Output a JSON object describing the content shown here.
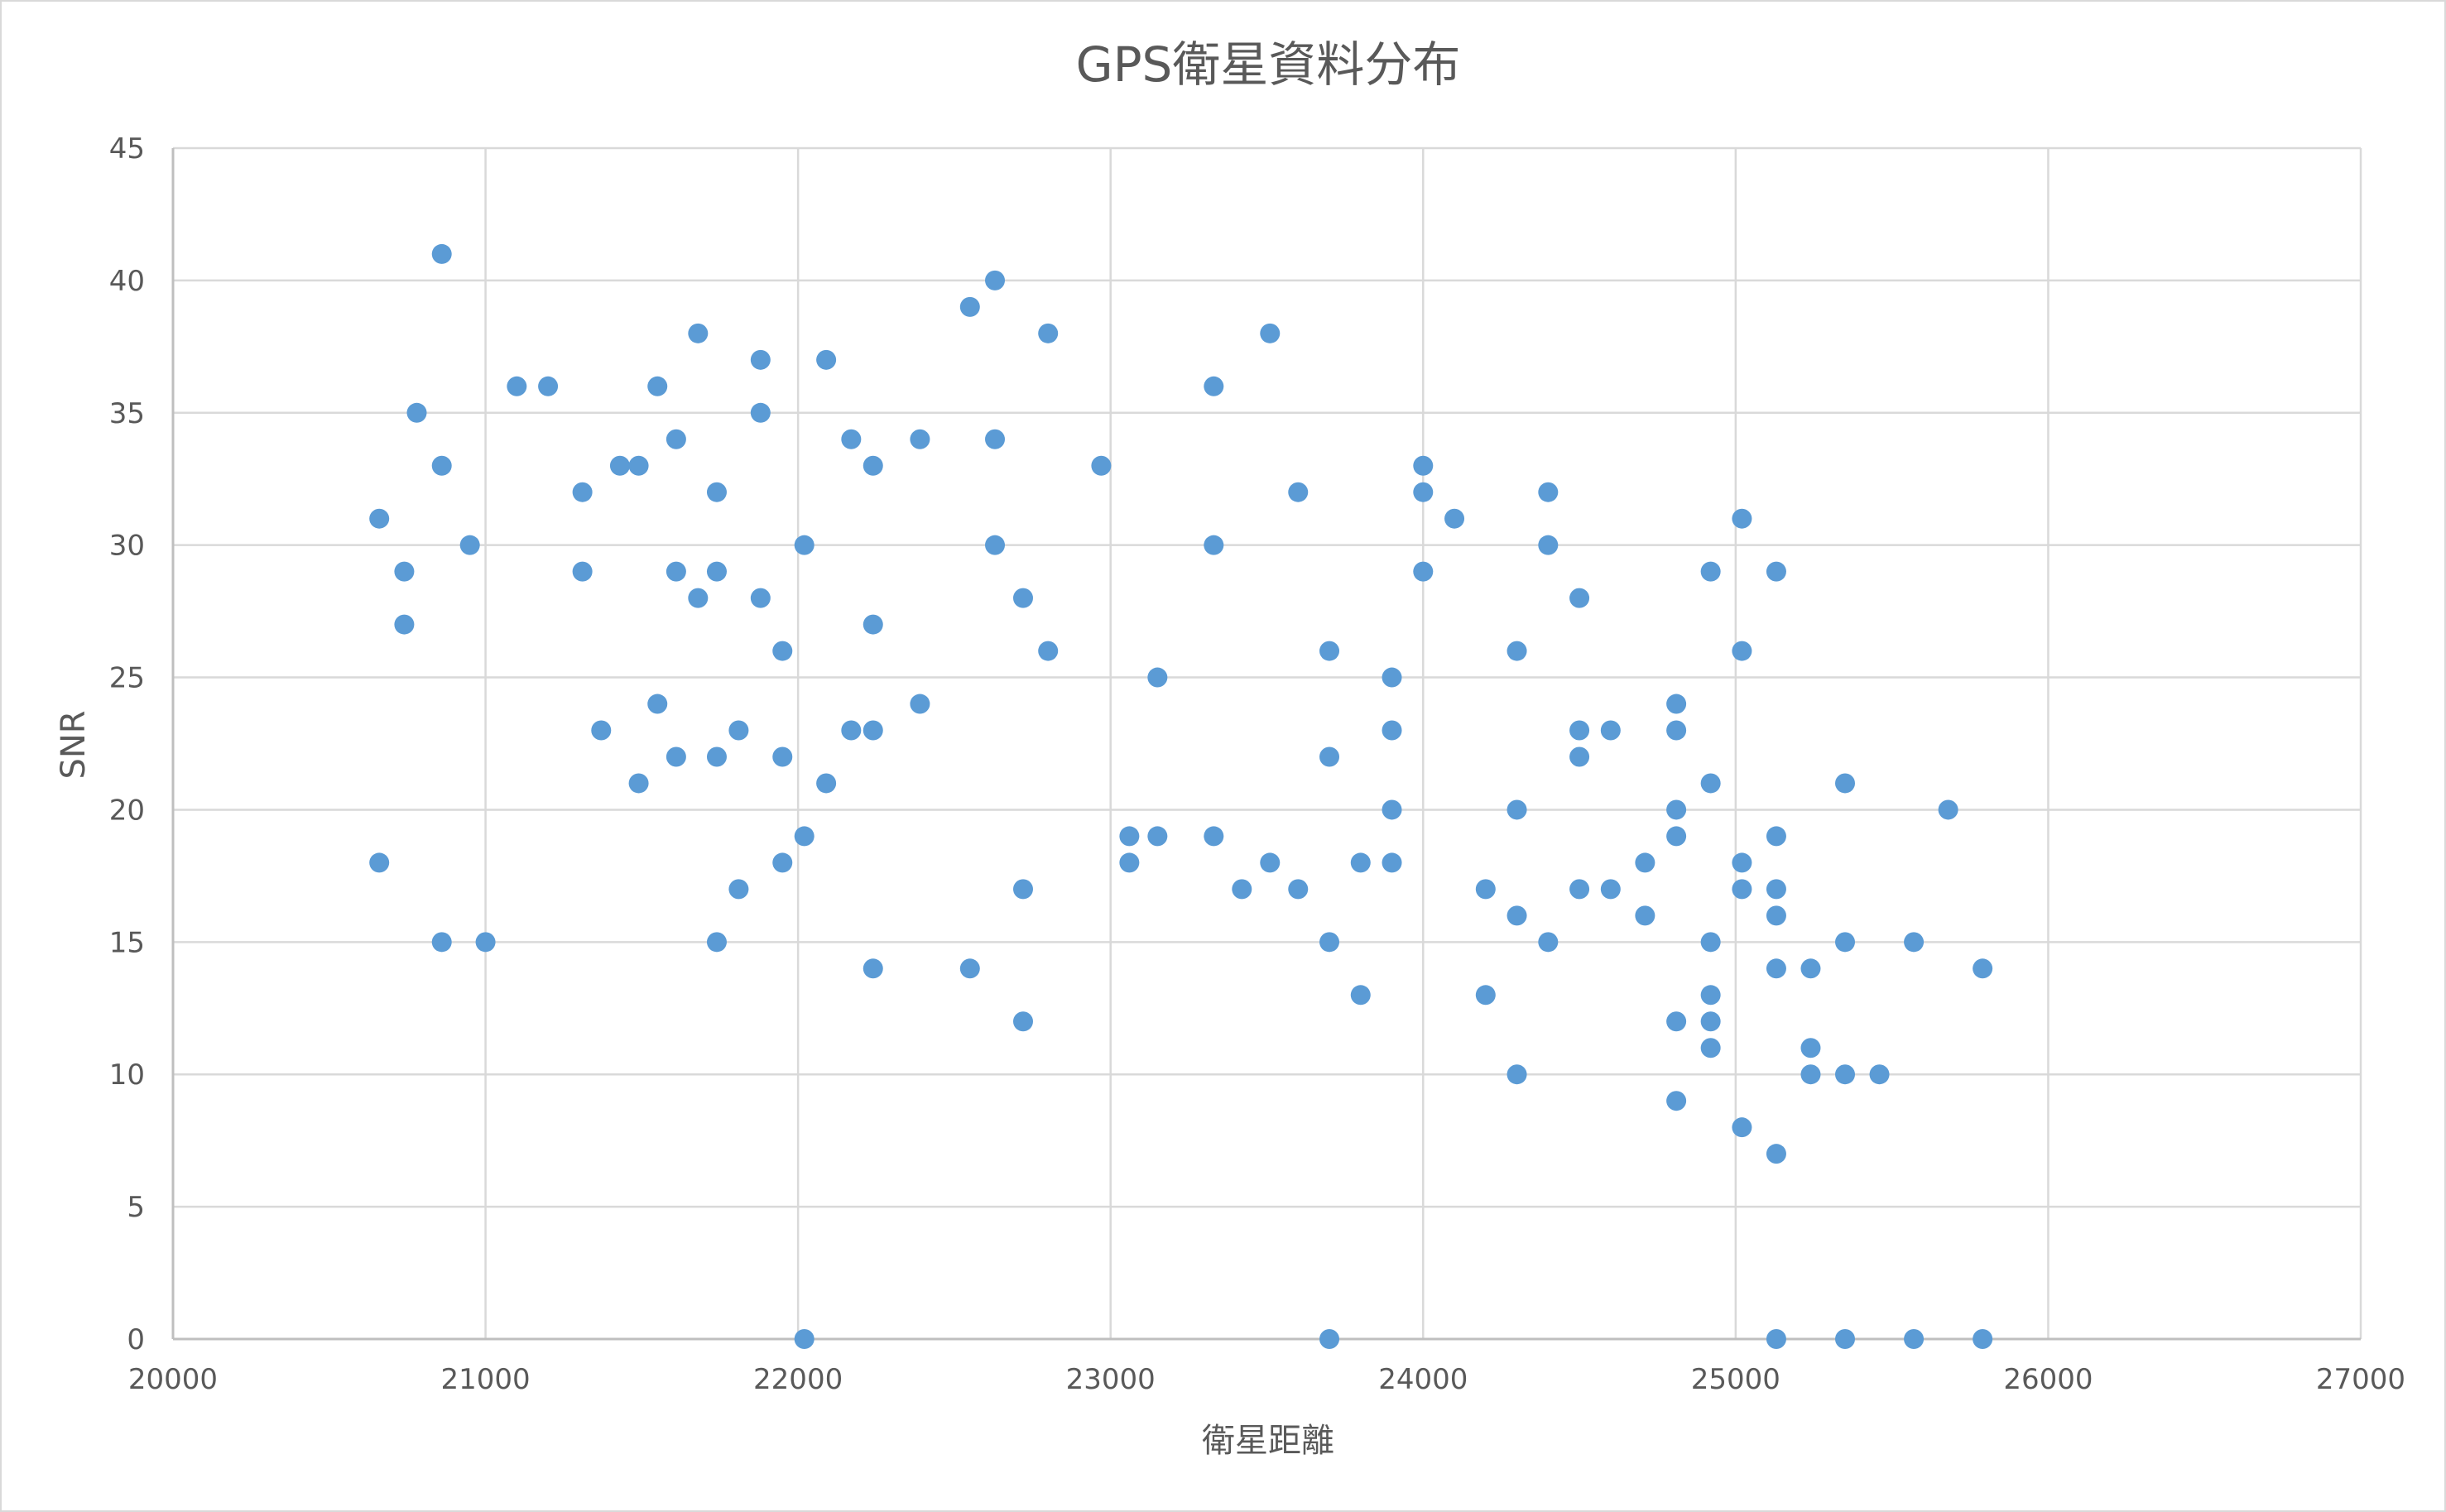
{
  "chart_data": {
    "type": "scatter",
    "title": "GPS衛星資料分布",
    "xlabel": "衛星距離",
    "ylabel": "SNR",
    "xlim": [
      20000,
      27000
    ],
    "ylim": [
      0,
      45
    ],
    "xticks": [
      20000,
      21000,
      22000,
      23000,
      24000,
      25000,
      26000,
      27000
    ],
    "yticks": [
      0,
      5,
      10,
      15,
      20,
      25,
      30,
      35,
      40,
      45
    ],
    "grid": true,
    "marker_color": "#5b9bd5",
    "points": [
      {
        "x": 20660,
        "y": 31
      },
      {
        "x": 20660,
        "y": 18
      },
      {
        "x": 20740,
        "y": 29
      },
      {
        "x": 20740,
        "y": 27
      },
      {
        "x": 20780,
        "y": 35
      },
      {
        "x": 20860,
        "y": 41
      },
      {
        "x": 20860,
        "y": 33
      },
      {
        "x": 20860,
        "y": 15
      },
      {
        "x": 20950,
        "y": 30
      },
      {
        "x": 21000,
        "y": 15
      },
      {
        "x": 21100,
        "y": 36
      },
      {
        "x": 21200,
        "y": 36
      },
      {
        "x": 21310,
        "y": 32
      },
      {
        "x": 21310,
        "y": 29
      },
      {
        "x": 21370,
        "y": 23
      },
      {
        "x": 21430,
        "y": 33
      },
      {
        "x": 21490,
        "y": 33
      },
      {
        "x": 21490,
        "y": 21
      },
      {
        "x": 21550,
        "y": 36
      },
      {
        "x": 21550,
        "y": 24
      },
      {
        "x": 21610,
        "y": 34
      },
      {
        "x": 21610,
        "y": 29
      },
      {
        "x": 21610,
        "y": 22
      },
      {
        "x": 21680,
        "y": 38
      },
      {
        "x": 21680,
        "y": 28
      },
      {
        "x": 21740,
        "y": 32
      },
      {
        "x": 21740,
        "y": 29
      },
      {
        "x": 21740,
        "y": 22
      },
      {
        "x": 21740,
        "y": 15
      },
      {
        "x": 21810,
        "y": 23
      },
      {
        "x": 21810,
        "y": 17
      },
      {
        "x": 21880,
        "y": 37
      },
      {
        "x": 21880,
        "y": 35
      },
      {
        "x": 21880,
        "y": 28
      },
      {
        "x": 21950,
        "y": 26
      },
      {
        "x": 21950,
        "y": 22
      },
      {
        "x": 21950,
        "y": 18
      },
      {
        "x": 22020,
        "y": 30
      },
      {
        "x": 22020,
        "y": 19
      },
      {
        "x": 22020,
        "y": 0
      },
      {
        "x": 22090,
        "y": 37
      },
      {
        "x": 22090,
        "y": 21
      },
      {
        "x": 22170,
        "y": 34
      },
      {
        "x": 22170,
        "y": 23
      },
      {
        "x": 22240,
        "y": 33
      },
      {
        "x": 22240,
        "y": 27
      },
      {
        "x": 22240,
        "y": 23
      },
      {
        "x": 22240,
        "y": 14
      },
      {
        "x": 22390,
        "y": 34
      },
      {
        "x": 22390,
        "y": 24
      },
      {
        "x": 22550,
        "y": 39
      },
      {
        "x": 22550,
        "y": 14
      },
      {
        "x": 22630,
        "y": 40
      },
      {
        "x": 22630,
        "y": 34
      },
      {
        "x": 22630,
        "y": 30
      },
      {
        "x": 22720,
        "y": 28
      },
      {
        "x": 22720,
        "y": 17
      },
      {
        "x": 22720,
        "y": 12
      },
      {
        "x": 22800,
        "y": 38
      },
      {
        "x": 22800,
        "y": 26
      },
      {
        "x": 22970,
        "y": 33
      },
      {
        "x": 23060,
        "y": 19
      },
      {
        "x": 23060,
        "y": 18
      },
      {
        "x": 23150,
        "y": 25
      },
      {
        "x": 23150,
        "y": 19
      },
      {
        "x": 23330,
        "y": 36
      },
      {
        "x": 23330,
        "y": 30
      },
      {
        "x": 23330,
        "y": 19
      },
      {
        "x": 23420,
        "y": 17
      },
      {
        "x": 23510,
        "y": 38
      },
      {
        "x": 23510,
        "y": 18
      },
      {
        "x": 23600,
        "y": 32
      },
      {
        "x": 23600,
        "y": 17
      },
      {
        "x": 23700,
        "y": 26
      },
      {
        "x": 23700,
        "y": 22
      },
      {
        "x": 23700,
        "y": 15
      },
      {
        "x": 23700,
        "y": 0
      },
      {
        "x": 23800,
        "y": 18
      },
      {
        "x": 23800,
        "y": 13
      },
      {
        "x": 23900,
        "y": 25
      },
      {
        "x": 23900,
        "y": 23
      },
      {
        "x": 23900,
        "y": 20
      },
      {
        "x": 23900,
        "y": 18
      },
      {
        "x": 24000,
        "y": 33
      },
      {
        "x": 24000,
        "y": 32
      },
      {
        "x": 24000,
        "y": 29
      },
      {
        "x": 24100,
        "y": 31
      },
      {
        "x": 24200,
        "y": 17
      },
      {
        "x": 24200,
        "y": 13
      },
      {
        "x": 24300,
        "y": 26
      },
      {
        "x": 24300,
        "y": 20
      },
      {
        "x": 24300,
        "y": 16
      },
      {
        "x": 24300,
        "y": 10
      },
      {
        "x": 24400,
        "y": 32
      },
      {
        "x": 24400,
        "y": 30
      },
      {
        "x": 24400,
        "y": 15
      },
      {
        "x": 24500,
        "y": 28
      },
      {
        "x": 24500,
        "y": 23
      },
      {
        "x": 24500,
        "y": 22
      },
      {
        "x": 24500,
        "y": 17
      },
      {
        "x": 24600,
        "y": 23
      },
      {
        "x": 24600,
        "y": 17
      },
      {
        "x": 24710,
        "y": 18
      },
      {
        "x": 24710,
        "y": 16
      },
      {
        "x": 24810,
        "y": 24
      },
      {
        "x": 24810,
        "y": 23
      },
      {
        "x": 24810,
        "y": 20
      },
      {
        "x": 24810,
        "y": 19
      },
      {
        "x": 24810,
        "y": 12
      },
      {
        "x": 24810,
        "y": 9
      },
      {
        "x": 24920,
        "y": 29
      },
      {
        "x": 24920,
        "y": 21
      },
      {
        "x": 24920,
        "y": 15
      },
      {
        "x": 24920,
        "y": 13
      },
      {
        "x": 24920,
        "y": 12
      },
      {
        "x": 24920,
        "y": 11
      },
      {
        "x": 25020,
        "y": 31
      },
      {
        "x": 25020,
        "y": 26
      },
      {
        "x": 25020,
        "y": 18
      },
      {
        "x": 25020,
        "y": 17
      },
      {
        "x": 25020,
        "y": 8
      },
      {
        "x": 25130,
        "y": 29
      },
      {
        "x": 25130,
        "y": 19
      },
      {
        "x": 25130,
        "y": 17
      },
      {
        "x": 25130,
        "y": 16
      },
      {
        "x": 25130,
        "y": 14
      },
      {
        "x": 25130,
        "y": 7
      },
      {
        "x": 25130,
        "y": 0
      },
      {
        "x": 25240,
        "y": 14
      },
      {
        "x": 25240,
        "y": 11
      },
      {
        "x": 25240,
        "y": 10
      },
      {
        "x": 25350,
        "y": 21
      },
      {
        "x": 25350,
        "y": 15
      },
      {
        "x": 25350,
        "y": 10
      },
      {
        "x": 25350,
        "y": 0
      },
      {
        "x": 25460,
        "y": 10
      },
      {
        "x": 25570,
        "y": 15
      },
      {
        "x": 25570,
        "y": 0
      },
      {
        "x": 25680,
        "y": 20
      },
      {
        "x": 25790,
        "y": 14
      },
      {
        "x": 25790,
        "y": 0
      }
    ]
  }
}
